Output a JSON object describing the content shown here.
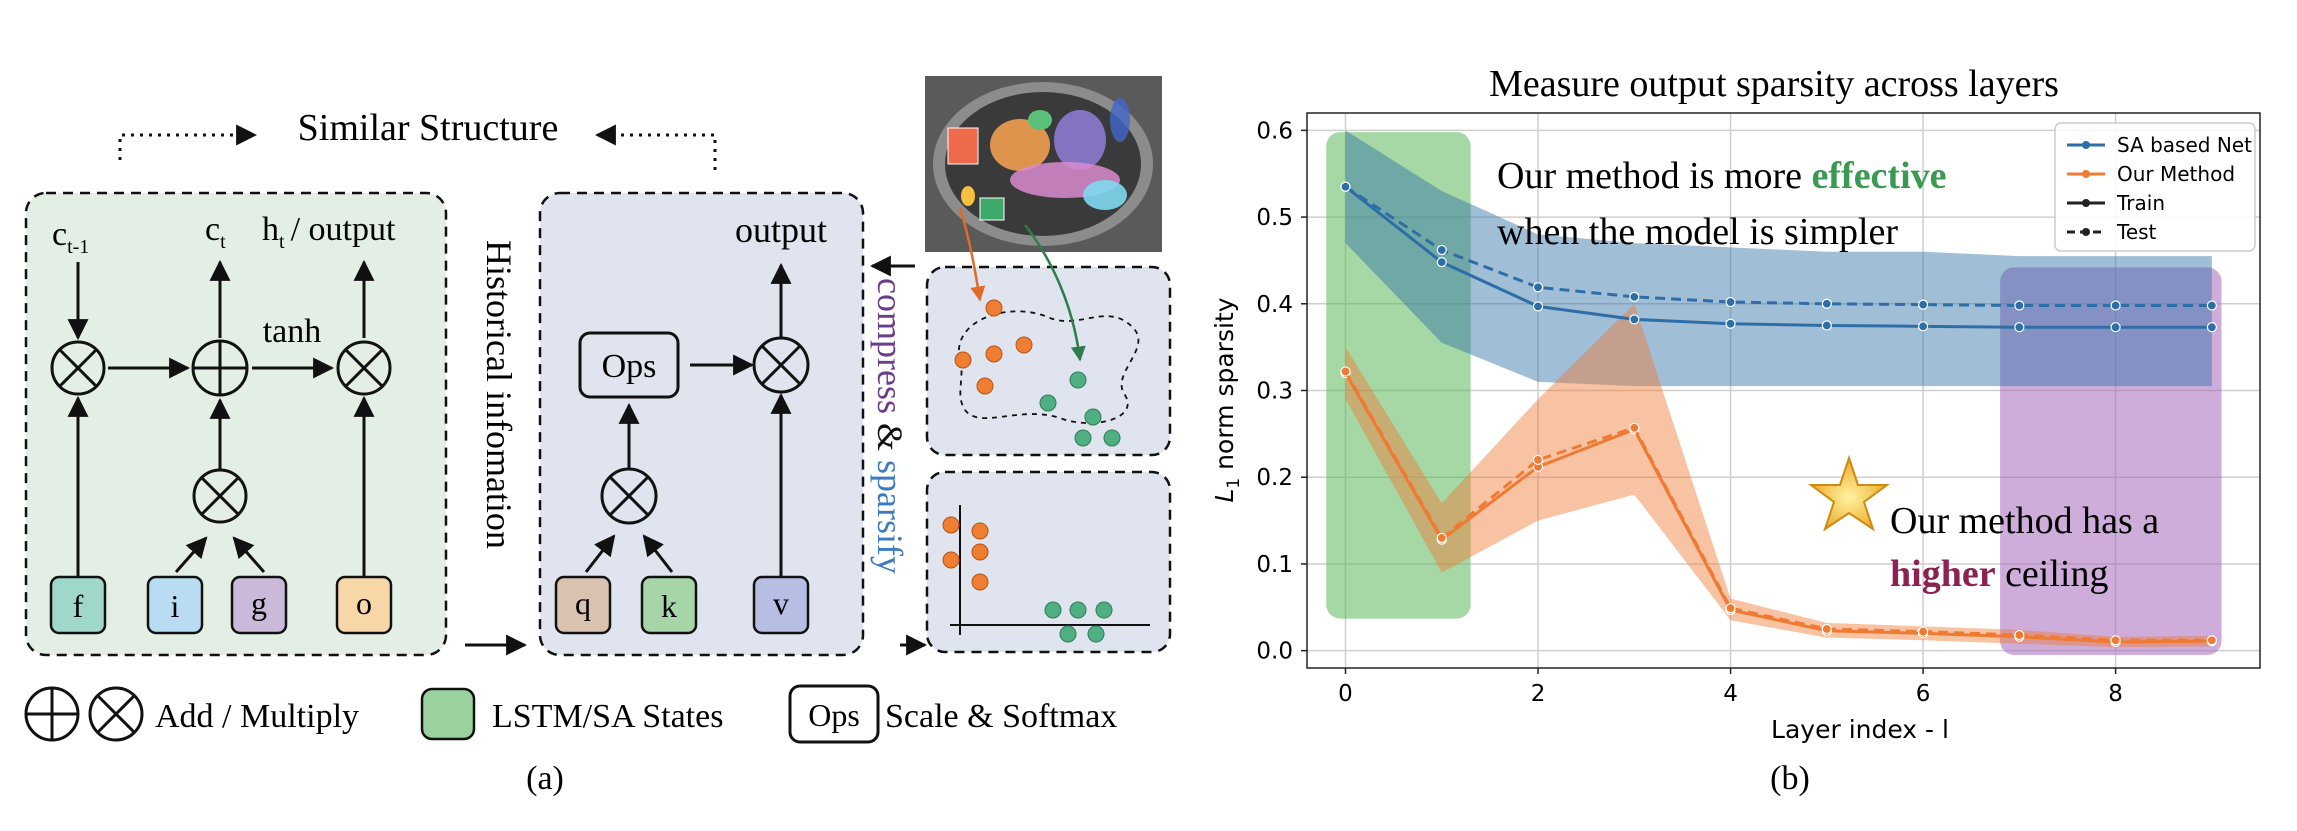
{
  "panel_a": {
    "title": "Similar Structure",
    "lstm": {
      "c_prev": "c",
      "c_prev_sub": "t-1",
      "c_t": "c",
      "c_t_sub": "t",
      "h_t": "h",
      "h_t_sub": "t",
      "h_t_rest": "/ output",
      "tanh": "tanh",
      "gates": [
        "f",
        "i",
        "g",
        "o"
      ]
    },
    "history_label": "Historical infomation",
    "sa": {
      "output": "output",
      "ops": "Ops",
      "inputs": [
        "q",
        "k",
        "v"
      ]
    },
    "side_label": {
      "compress": "compress",
      "amp": "&",
      "sparsify": "sparsify"
    },
    "legend": {
      "add_multiply": "Add / Multiply",
      "states": "LSTM/SA States",
      "ops_box": "Ops",
      "scale_softmax": "Scale & Softmax"
    },
    "caption": "(a)"
  },
  "chart_data": {
    "type": "line",
    "title": "Measure output sparsity across layers",
    "xlabel": "Layer index - l",
    "ylabel": "L1 norm sparsity",
    "ylabel_prefix": "L",
    "ylabel_sub": "1",
    "ylabel_rest": " norm sparsity",
    "xlim": [
      -0.4,
      9.5
    ],
    "ylim": [
      -0.02,
      0.62
    ],
    "xticks": [
      0,
      2,
      4,
      6,
      8
    ],
    "yticks": [
      0.0,
      0.1,
      0.2,
      0.3,
      0.4,
      0.5,
      0.6
    ],
    "grid": true,
    "x": [
      0,
      1,
      2,
      3,
      4,
      5,
      6,
      7,
      8,
      9
    ],
    "series": [
      {
        "name": "SA based Net",
        "split": "Train",
        "color": "#2e6ea6",
        "values": [
          0.535,
          0.448,
          0.397,
          0.382,
          0.377,
          0.375,
          0.374,
          0.373,
          0.373,
          0.373
        ],
        "band_low": [
          0.47,
          0.355,
          0.31,
          0.305,
          0.305,
          0.305,
          0.305,
          0.305,
          0.305,
          0.305
        ],
        "band_high": [
          0.6,
          0.53,
          0.48,
          0.47,
          0.465,
          0.46,
          0.46,
          0.455,
          0.455,
          0.455
        ]
      },
      {
        "name": "SA based Net",
        "split": "Test",
        "color": "#2e6ea6",
        "values": [
          0.535,
          0.462,
          0.419,
          0.408,
          0.402,
          0.4,
          0.399,
          0.398,
          0.398,
          0.398
        ]
      },
      {
        "name": "Our Method",
        "split": "Train",
        "color": "#ef7a33",
        "values": [
          0.32,
          0.128,
          0.212,
          0.255,
          0.047,
          0.023,
          0.02,
          0.016,
          0.01,
          0.011
        ],
        "band_low": [
          0.29,
          0.09,
          0.15,
          0.18,
          0.035,
          0.015,
          0.012,
          0.008,
          0.004,
          0.005
        ],
        "band_high": [
          0.35,
          0.17,
          0.29,
          0.4,
          0.06,
          0.032,
          0.028,
          0.024,
          0.016,
          0.017
        ]
      },
      {
        "name": "Our Method",
        "split": "Test",
        "color": "#ef7a33",
        "values": [
          0.322,
          0.13,
          0.22,
          0.257,
          0.049,
          0.025,
          0.022,
          0.018,
          0.012,
          0.012
        ]
      }
    ],
    "legend": {
      "position": "top-right",
      "entries": [
        "SA based Net",
        "Our Method",
        "Train",
        "Test"
      ]
    },
    "highlight_regions": [
      {
        "x": [
          -0.2,
          1.3
        ],
        "y": [
          0.037,
          0.598
        ],
        "color": "#5cb85c"
      },
      {
        "x": [
          6.8,
          9.1
        ],
        "y": [
          -0.005,
          0.442
        ],
        "color": "#a569bd"
      }
    ],
    "annotations": {
      "effective_line1_a": "Our method is more ",
      "effective_word": "effective",
      "effective_line2": "when the model is simpler",
      "ceiling_line1": "Our method has a",
      "ceiling_word": "higher",
      "ceiling_rest": " ceiling"
    },
    "caption": "(b)"
  },
  "colors": {
    "lstm_bg": "#e3efe4",
    "sa_bg": "#dfe4ee",
    "gate_f": "#9fd7c9",
    "gate_i": "#b9dcf2",
    "gate_g": "#cbb9da",
    "gate_o": "#f7d7a8",
    "gate_q": "#d9c3b0",
    "gate_k": "#a6d6a8",
    "gate_v": "#b7bde3",
    "orange_dot": "#ef7d32",
    "green_dot": "#4fae82",
    "effective": "#3a9a52",
    "higher": "#8b2252",
    "compress": "#6a3d8a",
    "sparsify": "#3b7bbf"
  }
}
